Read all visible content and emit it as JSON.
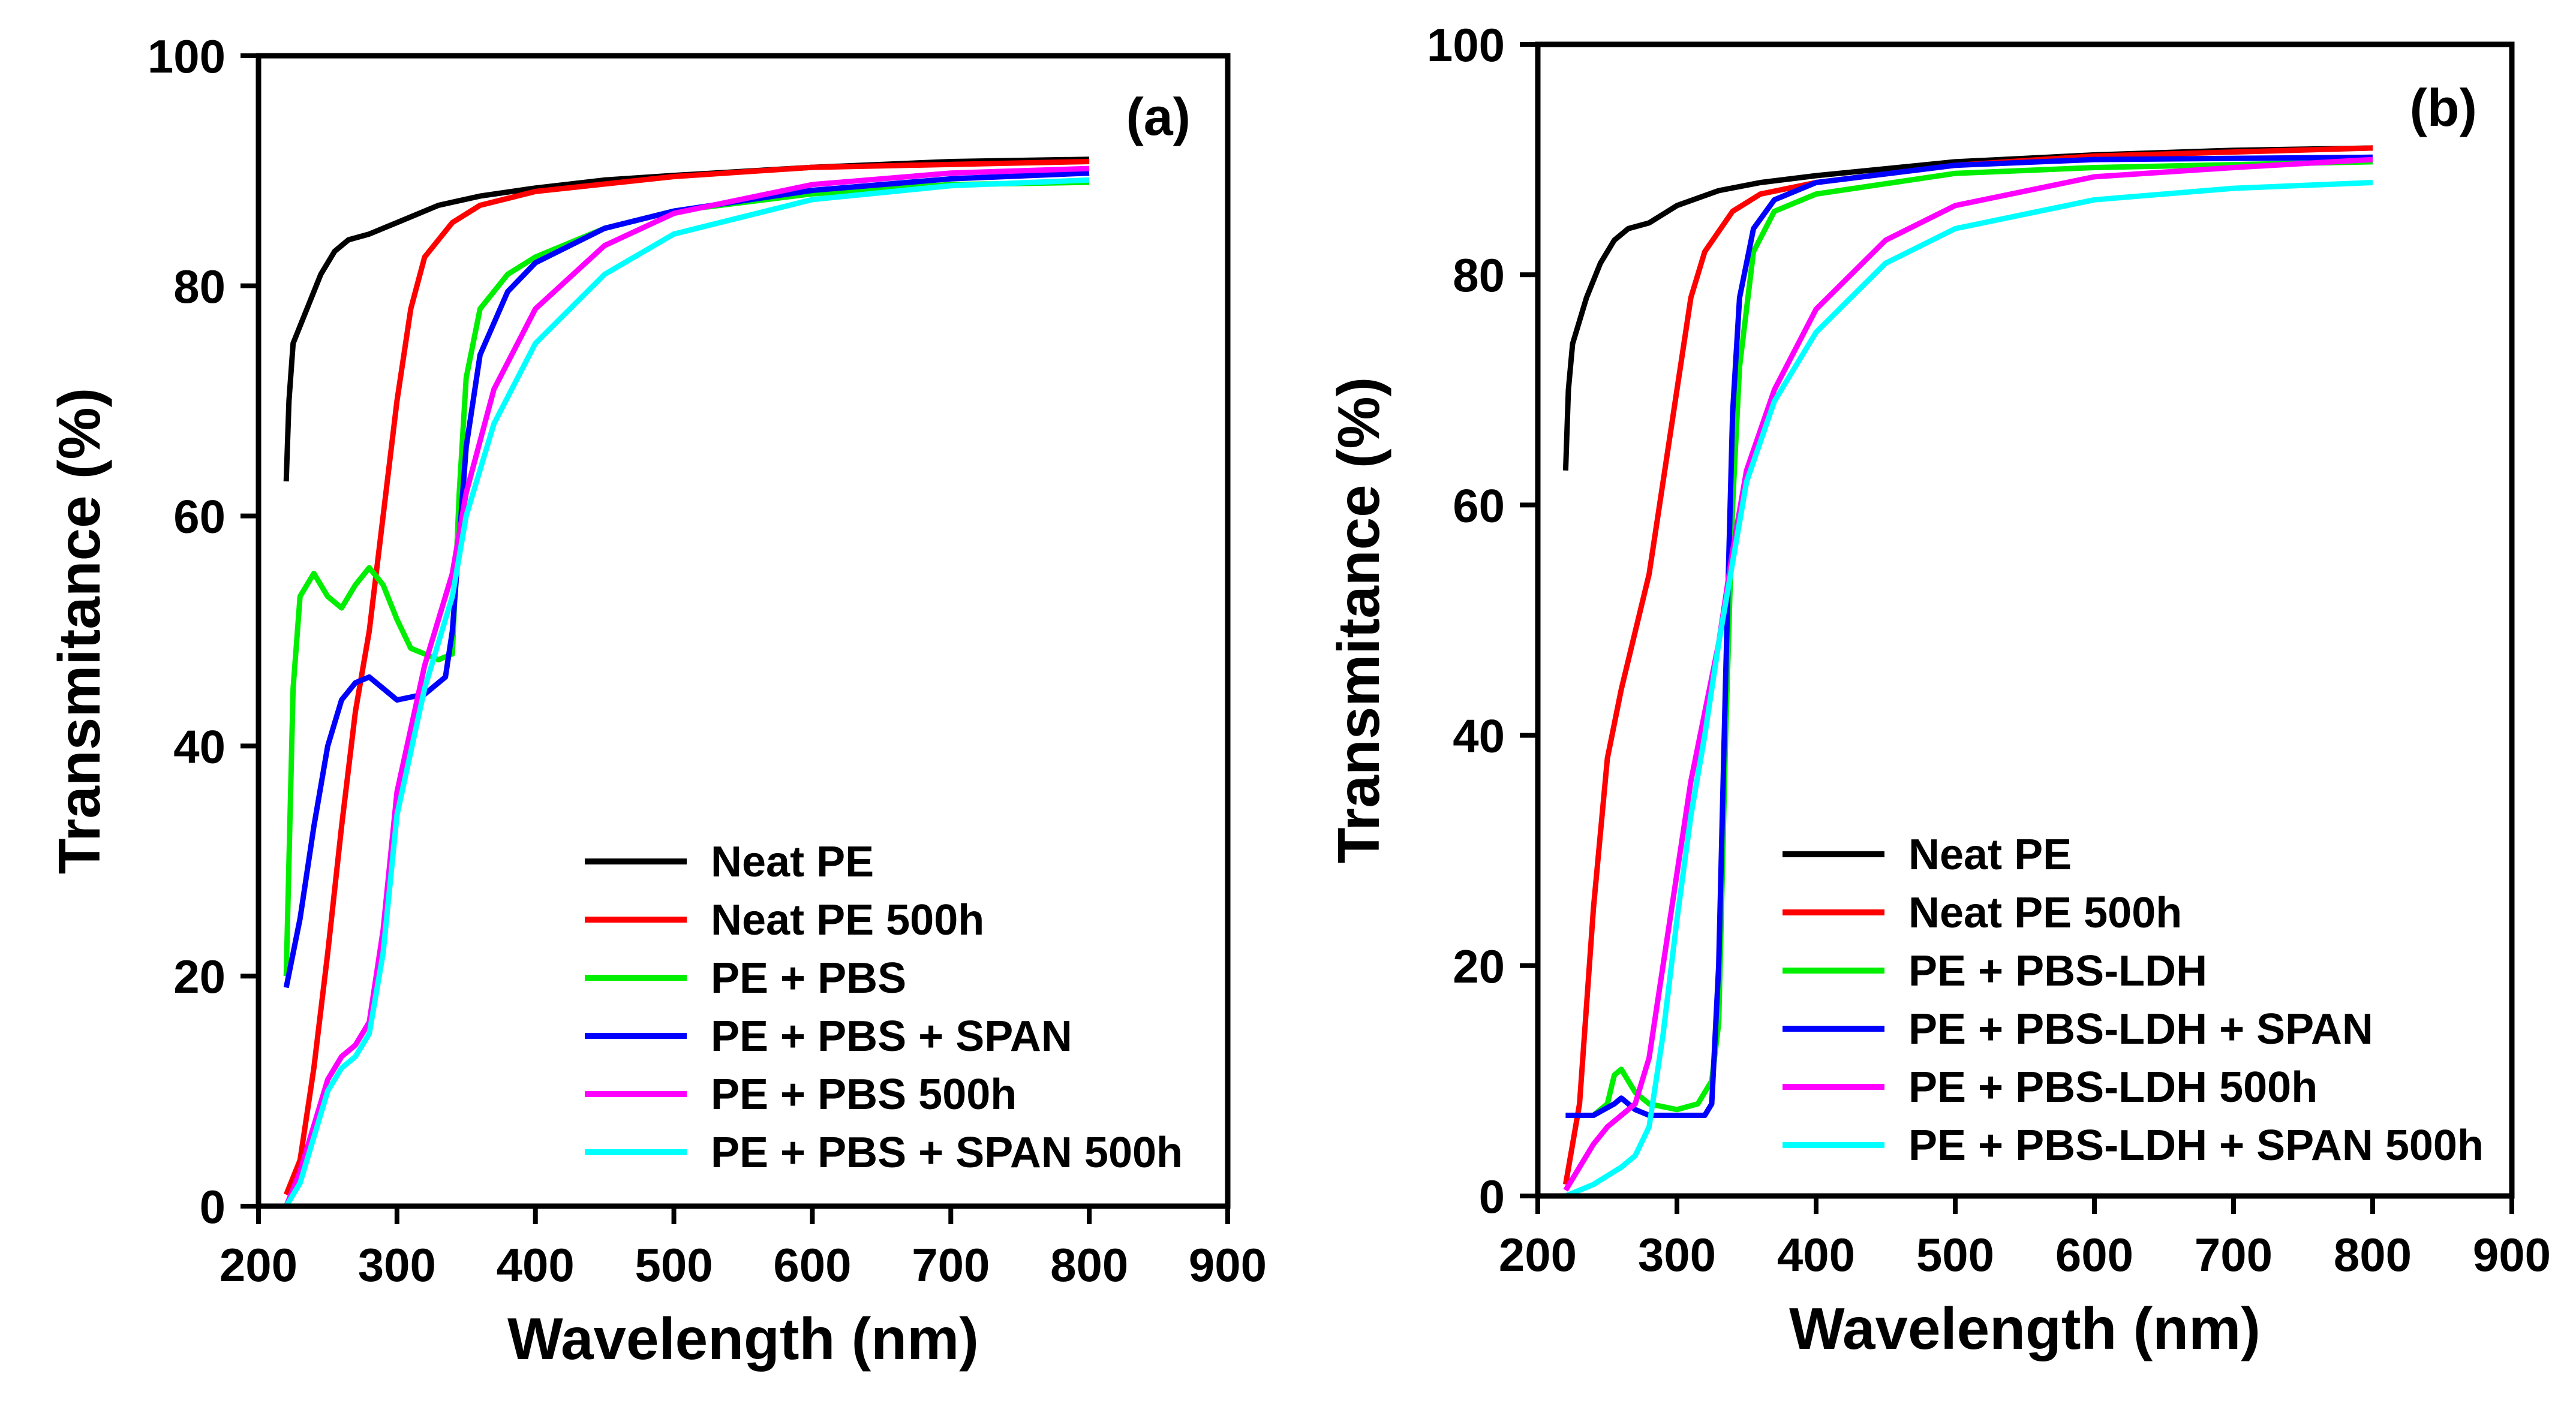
{
  "chart_data": [
    {
      "type": "line",
      "panel_label": "(a)",
      "xlabel": "Wavelength (nm)",
      "ylabel": "Transmitance (%)",
      "xlim": [
        200,
        900
      ],
      "ylim": [
        0,
        100
      ],
      "xticks": [
        200,
        300,
        400,
        500,
        600,
        700,
        800,
        900
      ],
      "yticks": [
        0,
        20,
        40,
        60,
        80,
        100
      ],
      "legend_position": "bottom-right",
      "series": [
        {
          "name": "Neat PE",
          "color": "#000000",
          "x": [
            220,
            222,
            225,
            235,
            245,
            255,
            265,
            280,
            300,
            330,
            360,
            400,
            450,
            500,
            600,
            700,
            800
          ],
          "y": [
            63,
            70,
            75,
            78,
            81,
            83,
            84,
            84.5,
            85.5,
            87,
            87.8,
            88.5,
            89.2,
            89.6,
            90.3,
            90.8,
            91
          ]
        },
        {
          "name": "Neat PE 500h",
          "color": "#ff0000",
          "x": [
            220,
            230,
            240,
            250,
            260,
            270,
            280,
            290,
            300,
            310,
            320,
            340,
            360,
            400,
            500,
            600,
            800
          ],
          "y": [
            1,
            4,
            12,
            22,
            33,
            43,
            50,
            60,
            70,
            78,
            82.5,
            85.5,
            87,
            88.2,
            89.5,
            90.3,
            90.8
          ]
        },
        {
          "name": "PE + PBS",
          "color": "#00ee00",
          "x": [
            220,
            222,
            225,
            230,
            240,
            250,
            260,
            270,
            280,
            290,
            300,
            310,
            320,
            330,
            340,
            345,
            350,
            360,
            380,
            400,
            450,
            500,
            600,
            700,
            800
          ],
          "y": [
            20,
            30,
            45,
            53,
            55,
            53,
            52,
            54,
            55.5,
            54,
            51,
            48.5,
            48,
            47.5,
            48,
            62,
            72,
            78,
            81,
            82.5,
            85,
            86.5,
            88,
            88.8,
            89
          ]
        },
        {
          "name": "PE + PBS + SPAN",
          "color": "#0000ff",
          "x": [
            220,
            230,
            240,
            250,
            260,
            270,
            280,
            290,
            300,
            320,
            335,
            340,
            350,
            360,
            380,
            400,
            450,
            500,
            600,
            700,
            800
          ],
          "y": [
            19,
            25,
            33,
            40,
            44,
            45.5,
            46,
            45,
            44,
            44.5,
            46,
            50,
            66,
            74,
            79.5,
            82,
            85,
            86.5,
            88.3,
            89.3,
            89.8
          ]
        },
        {
          "name": "PE + PBS 500h",
          "color": "#ff00ff",
          "x": [
            220,
            230,
            240,
            250,
            260,
            270,
            280,
            290,
            300,
            320,
            340,
            350,
            370,
            400,
            450,
            500,
            600,
            700,
            800
          ],
          "y": [
            0,
            3,
            7,
            11,
            13,
            14,
            16,
            24,
            36,
            47,
            55,
            62,
            71,
            78,
            83.5,
            86.3,
            88.8,
            89.8,
            90.2
          ]
        },
        {
          "name": "PE + PBS + SPAN 500h",
          "color": "#00ffff",
          "x": [
            220,
            230,
            240,
            250,
            260,
            270,
            280,
            290,
            300,
            320,
            340,
            350,
            370,
            400,
            450,
            500,
            600,
            700,
            800
          ],
          "y": [
            0,
            2,
            6,
            10,
            12,
            13,
            15,
            22,
            34,
            45,
            53,
            60,
            68,
            75,
            81,
            84.5,
            87.5,
            88.7,
            89.2
          ]
        }
      ]
    },
    {
      "type": "line",
      "panel_label": "(b)",
      "xlabel": "Wavelength (nm)",
      "ylabel": "Transmitance (%)",
      "xlim": [
        200,
        900
      ],
      "ylim": [
        0,
        100
      ],
      "xticks": [
        200,
        300,
        400,
        500,
        600,
        700,
        800,
        900
      ],
      "yticks": [
        0,
        20,
        40,
        60,
        80,
        100
      ],
      "legend_position": "bottom-right",
      "series": [
        {
          "name": "Neat PE",
          "color": "#000000",
          "x": [
            220,
            222,
            225,
            235,
            245,
            255,
            265,
            280,
            300,
            330,
            360,
            400,
            450,
            500,
            600,
            700,
            800
          ],
          "y": [
            63,
            70,
            74,
            78,
            81,
            83,
            84,
            84.5,
            86,
            87.3,
            88,
            88.6,
            89.2,
            89.8,
            90.4,
            90.8,
            91
          ]
        },
        {
          "name": "Neat PE 500h",
          "color": "#ff0000",
          "x": [
            220,
            230,
            240,
            250,
            260,
            270,
            280,
            290,
            300,
            310,
            320,
            340,
            360,
            400,
            500,
            600,
            800
          ],
          "y": [
            1,
            8,
            25,
            38,
            44,
            49,
            54,
            62,
            70,
            78,
            82,
            85.5,
            87,
            88,
            89.5,
            90.3,
            91
          ]
        },
        {
          "name": "PE + PBS-LDH",
          "color": "#00ee00",
          "x": [
            220,
            240,
            250,
            255,
            260,
            270,
            280,
            300,
            315,
            320,
            325,
            330,
            335,
            340,
            345,
            355,
            370,
            400,
            500,
            600,
            800
          ],
          "y": [
            7,
            7,
            8,
            10.5,
            11,
            9,
            8,
            7.5,
            8,
            9,
            10,
            15,
            40,
            60,
            72,
            82,
            85.5,
            87,
            88.8,
            89.3,
            89.8
          ]
        },
        {
          "name": "PE + PBS-LDH + SPAN",
          "color": "#0000ff",
          "x": [
            220,
            240,
            255,
            260,
            265,
            270,
            280,
            320,
            325,
            330,
            335,
            340,
            345,
            355,
            370,
            400,
            500,
            600,
            800
          ],
          "y": [
            7,
            7,
            8,
            8.5,
            8,
            7.5,
            7,
            7,
            8,
            20,
            45,
            68,
            78,
            84,
            86.5,
            88,
            89.5,
            90,
            90.2
          ]
        },
        {
          "name": "PE + PBS-LDH 500h",
          "color": "#ff00ff",
          "x": [
            220,
            230,
            240,
            250,
            260,
            270,
            280,
            290,
            300,
            310,
            320,
            330,
            340,
            350,
            370,
            400,
            450,
            500,
            600,
            700,
            800
          ],
          "y": [
            0.5,
            2.5,
            4.5,
            6,
            7,
            8,
            12,
            20,
            28,
            36,
            42,
            48,
            56,
            63,
            70,
            77,
            83,
            86,
            88.5,
            89.3,
            90
          ]
        },
        {
          "name": "PE + PBS-LDH + SPAN 500h",
          "color": "#00ffff",
          "x": [
            220,
            240,
            260,
            270,
            280,
            290,
            300,
            310,
            320,
            330,
            340,
            350,
            370,
            400,
            450,
            500,
            600,
            700,
            800
          ],
          "y": [
            0,
            1,
            2.5,
            3.5,
            6,
            14,
            24,
            33,
            40,
            48,
            55,
            62,
            69,
            75,
            81,
            84,
            86.5,
            87.5,
            88
          ]
        }
      ]
    }
  ]
}
